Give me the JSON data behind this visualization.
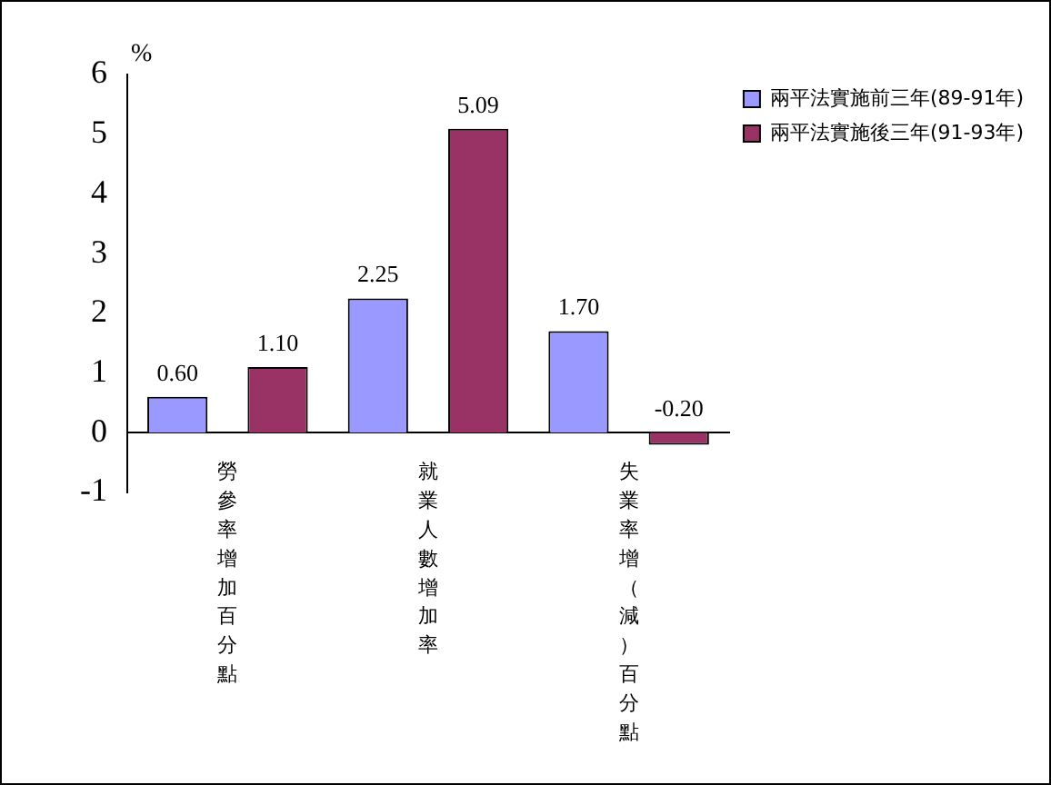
{
  "chart_data": {
    "type": "bar",
    "ylabel": "%",
    "categories": [
      "勞參率增加百分點",
      "就業人數增加率",
      "失業率增（減）百分點"
    ],
    "series": [
      {
        "name": "兩平法實施前三年(89-91年)",
        "color": "#9999ff",
        "values": [
          0.6,
          2.25,
          1.7
        ]
      },
      {
        "name": "兩平法實施後三年(91-93年)",
        "color": "#993366",
        "values": [
          1.1,
          5.09,
          -0.2
        ]
      }
    ],
    "value_labels": [
      [
        "0.60",
        "2.25",
        "1.70"
      ],
      [
        "1.10",
        "5.09",
        "-0.20"
      ]
    ],
    "ylim": [
      -1,
      6
    ],
    "yticks": [
      -1,
      0,
      1,
      2,
      3,
      4,
      5,
      6
    ],
    "grid": false,
    "legend": "right"
  }
}
